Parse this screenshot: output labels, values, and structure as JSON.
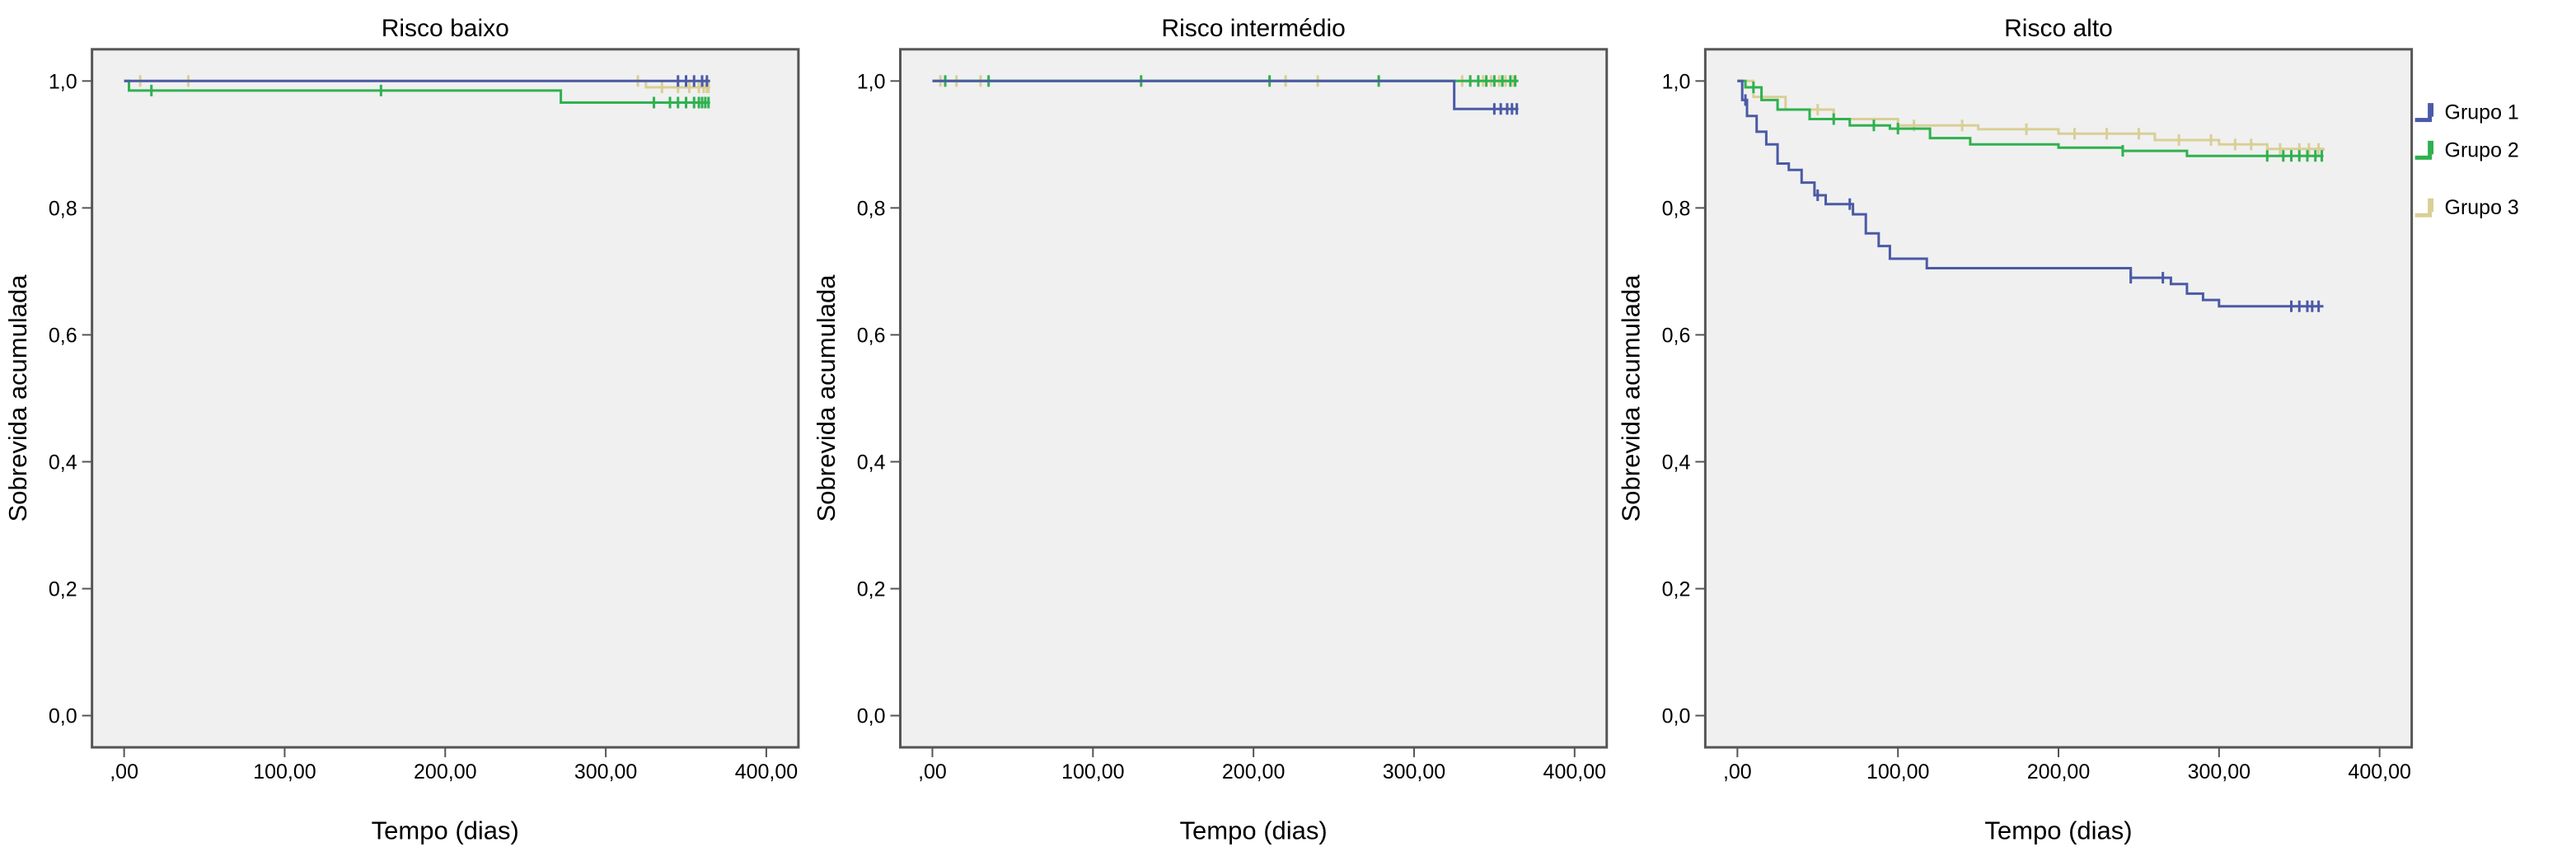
{
  "colors": {
    "grupo1": "#4a5aa6",
    "grupo2": "#2fb14f",
    "grupo3": "#d9cf96",
    "plot_bg": "#f0f0f0",
    "frame": "#555555"
  },
  "legend": {
    "items": [
      {
        "label": "Grupo 1",
        "color_key": "grupo1"
      },
      {
        "label": "Grupo 2",
        "color_key": "grupo2"
      },
      {
        "label": "Grupo 3",
        "color_key": "grupo3"
      }
    ]
  },
  "chart_data": [
    {
      "type": "line",
      "title": "Risco baixo",
      "xlabel": "Tempo (dias)",
      "ylabel": "Sobrevida acumulada",
      "xlim": [
        -20,
        420
      ],
      "ylim": [
        -0.05,
        1.05
      ],
      "xticks": [
        0,
        100,
        200,
        300,
        400
      ],
      "xtick_labels": [
        ",00",
        "100,00",
        "200,00",
        "300,00",
        "400,00"
      ],
      "yticks": [
        0.0,
        0.2,
        0.4,
        0.6,
        0.8,
        1.0
      ],
      "ytick_labels": [
        "0,0",
        "0,2",
        "0,4",
        "0,6",
        "0,8",
        "1,0"
      ],
      "series": [
        {
          "name": "Grupo 1",
          "color_key": "grupo1",
          "x": [
            0,
            365
          ],
          "y": [
            1.0,
            1.0
          ],
          "censored_x": [
            345,
            350,
            355,
            360,
            363
          ]
        },
        {
          "name": "Grupo 2",
          "color_key": "grupo2",
          "x": [
            0,
            3,
            272,
            365
          ],
          "y": [
            1.0,
            0.985,
            0.966,
            0.966
          ],
          "censored_x": [
            17,
            160,
            330,
            340,
            345,
            350,
            355,
            358,
            360,
            362,
            364
          ]
        },
        {
          "name": "Grupo 3",
          "color_key": "grupo3",
          "x": [
            0,
            325,
            365
          ],
          "y": [
            1.0,
            0.99,
            0.99
          ],
          "censored_x": [
            10,
            40,
            320,
            335,
            345,
            352,
            358,
            361,
            363,
            364
          ]
        }
      ]
    },
    {
      "type": "line",
      "title": "Risco intermédio",
      "xlabel": "Tempo (dias)",
      "ylabel": "Sobrevida acumulada",
      "xlim": [
        -20,
        420
      ],
      "ylim": [
        -0.05,
        1.05
      ],
      "xticks": [
        0,
        100,
        200,
        300,
        400
      ],
      "xtick_labels": [
        ",00",
        "100,00",
        "200,00",
        "300,00",
        "400,00"
      ],
      "yticks": [
        0.0,
        0.2,
        0.4,
        0.6,
        0.8,
        1.0
      ],
      "ytick_labels": [
        "0,0",
        "0,2",
        "0,4",
        "0,6",
        "0,8",
        "1,0"
      ],
      "series": [
        {
          "name": "Grupo 1",
          "color_key": "grupo1",
          "x": [
            0,
            325,
            365
          ],
          "y": [
            1.0,
            0.956,
            0.956
          ],
          "censored_x": [
            350,
            354,
            358,
            361,
            364
          ]
        },
        {
          "name": "Grupo 2",
          "color_key": "grupo2",
          "x": [
            0,
            365
          ],
          "y": [
            1.0,
            1.0
          ],
          "censored_x": [
            8,
            35,
            130,
            210,
            278,
            335,
            340,
            345,
            350,
            355,
            360,
            363
          ]
        },
        {
          "name": "Grupo 3",
          "color_key": "grupo3",
          "x": [
            0,
            365
          ],
          "y": [
            1.0,
            1.0
          ],
          "censored_x": [
            5,
            15,
            30,
            220,
            240,
            330,
            343,
            348,
            353,
            357,
            362
          ]
        }
      ]
    },
    {
      "type": "line",
      "title": "Risco alto",
      "xlabel": "Tempo (dias)",
      "ylabel": "Sobrevida acumulada",
      "xlim": [
        -20,
        420
      ],
      "ylim": [
        -0.05,
        1.05
      ],
      "xticks": [
        0,
        100,
        200,
        300,
        400
      ],
      "xtick_labels": [
        ",00",
        "100,00",
        "200,00",
        "300,00",
        "400,00"
      ],
      "yticks": [
        0.0,
        0.2,
        0.4,
        0.6,
        0.8,
        1.0
      ],
      "ytick_labels": [
        "0,0",
        "0,2",
        "0,4",
        "0,6",
        "0,8",
        "1,0"
      ],
      "series": [
        {
          "name": "Grupo 1",
          "color_key": "grupo1",
          "x": [
            0,
            3,
            6,
            12,
            18,
            25,
            32,
            40,
            48,
            55,
            62,
            72,
            80,
            88,
            95,
            118,
            245,
            270,
            280,
            290,
            300,
            365
          ],
          "y": [
            1.0,
            0.97,
            0.945,
            0.92,
            0.9,
            0.87,
            0.86,
            0.84,
            0.82,
            0.806,
            0.806,
            0.79,
            0.76,
            0.74,
            0.72,
            0.705,
            0.69,
            0.68,
            0.665,
            0.655,
            0.645,
            0.645
          ],
          "censored_x": [
            5,
            50,
            70,
            245,
            265,
            345,
            350,
            355,
            358,
            362
          ]
        },
        {
          "name": "Grupo 2",
          "color_key": "grupo2",
          "x": [
            0,
            5,
            15,
            25,
            45,
            70,
            95,
            120,
            145,
            200,
            240,
            280,
            365
          ],
          "y": [
            1.0,
            0.99,
            0.97,
            0.955,
            0.94,
            0.93,
            0.925,
            0.91,
            0.9,
            0.895,
            0.89,
            0.882,
            0.882
          ],
          "censored_x": [
            10,
            60,
            85,
            100,
            240,
            330,
            340,
            345,
            350,
            355,
            360,
            364
          ]
        },
        {
          "name": "Grupo 3",
          "color_key": "grupo3",
          "x": [
            0,
            10,
            30,
            60,
            100,
            150,
            200,
            260,
            300,
            330,
            365
          ],
          "y": [
            1.0,
            0.975,
            0.955,
            0.94,
            0.93,
            0.924,
            0.917,
            0.907,
            0.9,
            0.893,
            0.89
          ],
          "censored_x": [
            50,
            110,
            140,
            180,
            210,
            230,
            250,
            275,
            295,
            310,
            320,
            338,
            350,
            356,
            362
          ]
        }
      ]
    }
  ]
}
